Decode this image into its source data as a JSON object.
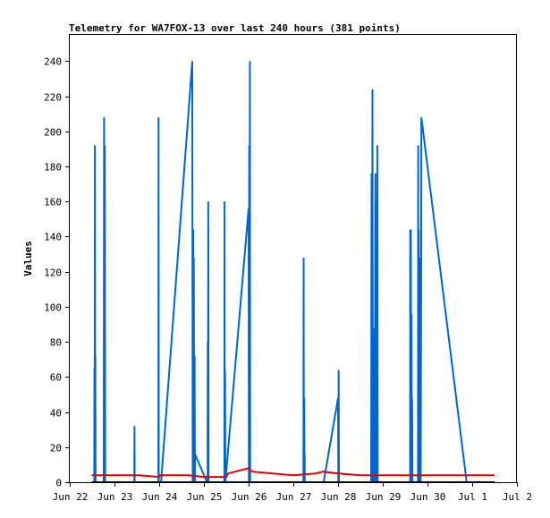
{
  "chart_data": {
    "type": "line",
    "title": "Telemetry for WA7FOX-13 over last 240 hours (381 points)",
    "xlabel": "",
    "ylabel": "Values",
    "xlim": [
      "2020-06-22T00:00",
      "2020-07-02T00:00"
    ],
    "ylim": [
      0,
      255
    ],
    "grid": false,
    "legend": "none",
    "y_ticks": [
      0,
      20,
      40,
      60,
      80,
      100,
      120,
      140,
      160,
      180,
      200,
      220,
      240
    ],
    "x_ticks": [
      {
        "t": "2020-06-22T00:00",
        "label": "Jun 22"
      },
      {
        "t": "2020-06-23T00:00",
        "label": "Jun 23"
      },
      {
        "t": "2020-06-24T00:00",
        "label": "Jun 24"
      },
      {
        "t": "2020-06-25T00:00",
        "label": "Jun 25"
      },
      {
        "t": "2020-06-26T00:00",
        "label": "Jun 26"
      },
      {
        "t": "2020-06-27T00:00",
        "label": "Jun 27"
      },
      {
        "t": "2020-06-28T00:00",
        "label": "Jun 28"
      },
      {
        "t": "2020-06-29T00:00",
        "label": "Jun 29"
      },
      {
        "t": "2020-06-30T00:00",
        "label": "Jun 30"
      },
      {
        "t": "2020-07-01T00:00",
        "label": "Jul 1"
      },
      {
        "t": "2020-07-02T00:00",
        "label": "Jul 2"
      }
    ],
    "series": [
      {
        "color": "#0066cc",
        "points": [
          [
            "2020-06-22T13:10",
            0
          ],
          [
            "2020-06-22T13:15",
            65
          ],
          [
            "2020-06-22T13:20",
            0
          ],
          [
            "2020-06-22T13:30",
            192
          ],
          [
            "2020-06-22T13:38",
            0
          ],
          [
            "2020-06-22T13:45",
            72
          ],
          [
            "2020-06-22T13:52",
            0
          ],
          [
            "2020-06-22T18:15",
            0
          ],
          [
            "2020-06-22T18:25",
            208
          ],
          [
            "2020-06-22T18:35",
            0
          ],
          [
            "2020-06-22T18:50",
            192
          ],
          [
            "2020-06-22T19:00",
            0
          ],
          [
            "2020-06-23T10:40",
            0
          ],
          [
            "2020-06-23T10:45",
            32
          ],
          [
            "2020-06-23T10:50",
            0
          ],
          [
            "2020-06-23T23:35",
            0
          ],
          [
            "2020-06-23T23:40",
            208
          ],
          [
            "2020-06-23T23:45",
            0
          ],
          [
            "2020-06-24T01:00",
            0
          ],
          [
            "2020-06-24T17:45",
            240
          ],
          [
            "2020-06-24T18:00",
            0
          ],
          [
            "2020-06-24T18:15",
            144
          ],
          [
            "2020-06-24T18:25",
            0
          ],
          [
            "2020-06-24T18:35",
            128
          ],
          [
            "2020-06-24T18:45",
            0
          ],
          [
            "2020-06-24T19:00",
            72
          ],
          [
            "2020-06-24T19:10",
            0
          ],
          [
            "2020-06-24T19:15",
            16
          ],
          [
            "2020-06-25T01:40",
            0
          ],
          [
            "2020-06-25T02:00",
            0
          ],
          [
            "2020-06-25T02:05",
            80
          ],
          [
            "2020-06-25T02:10",
            0
          ],
          [
            "2020-06-25T02:20",
            160
          ],
          [
            "2020-06-25T02:30",
            0
          ],
          [
            "2020-06-25T10:50",
            0
          ],
          [
            "2020-06-25T11:00",
            0
          ],
          [
            "2020-06-25T11:05",
            160
          ],
          [
            "2020-06-25T11:10",
            0
          ],
          [
            "2020-06-25T11:20",
            64
          ],
          [
            "2020-06-25T11:30",
            0
          ],
          [
            "2020-06-26T00:00",
            156
          ],
          [
            "2020-06-26T00:10",
            0
          ],
          [
            "2020-06-26T00:20",
            192
          ],
          [
            "2020-06-26T00:30",
            0
          ],
          [
            "2020-06-26T00:40",
            240
          ],
          [
            "2020-06-26T00:50",
            0
          ],
          [
            "2020-06-27T05:25",
            0
          ],
          [
            "2020-06-27T05:30",
            128
          ],
          [
            "2020-06-27T05:40",
            0
          ],
          [
            "2020-06-27T05:50",
            48
          ],
          [
            "2020-06-27T06:00",
            0
          ],
          [
            "2020-06-27T06:05",
            16
          ],
          [
            "2020-06-27T06:10",
            0
          ],
          [
            "2020-06-27T16:15",
            0
          ],
          [
            "2020-06-28T00:00",
            48
          ],
          [
            "2020-06-28T00:10",
            0
          ],
          [
            "2020-06-28T00:20",
            64
          ],
          [
            "2020-06-28T00:30",
            0
          ],
          [
            "2020-06-28T00:40",
            0
          ],
          [
            "2020-06-28T17:45",
            0
          ],
          [
            "2020-06-28T18:00",
            176
          ],
          [
            "2020-06-28T18:15",
            0
          ],
          [
            "2020-06-28T18:30",
            224
          ],
          [
            "2020-06-28T18:40",
            0
          ],
          [
            "2020-06-28T19:30",
            0
          ],
          [
            "2020-06-28T19:35",
            88
          ],
          [
            "2020-06-28T19:45",
            0
          ],
          [
            "2020-06-28T20:00",
            176
          ],
          [
            "2020-06-28T20:10",
            0
          ],
          [
            "2020-06-28T20:20",
            160
          ],
          [
            "2020-06-28T20:30",
            0
          ],
          [
            "2020-06-28T21:00",
            0
          ],
          [
            "2020-06-28T21:05",
            192
          ],
          [
            "2020-06-28T21:15",
            0
          ],
          [
            "2020-06-29T14:40",
            0
          ],
          [
            "2020-06-29T14:45",
            144
          ],
          [
            "2020-06-29T14:55",
            0
          ],
          [
            "2020-06-29T15:05",
            144
          ],
          [
            "2020-06-29T15:15",
            0
          ],
          [
            "2020-06-29T15:25",
            96
          ],
          [
            "2020-06-29T15:35",
            0
          ],
          [
            "2020-06-29T15:45",
            48
          ],
          [
            "2020-06-29T15:55",
            0
          ],
          [
            "2020-06-29T18:55",
            0
          ],
          [
            "2020-06-29T19:00",
            192
          ],
          [
            "2020-06-29T19:10",
            0
          ],
          [
            "2020-06-29T19:20",
            144
          ],
          [
            "2020-06-29T19:30",
            0
          ],
          [
            "2020-06-29T20:05",
            0
          ],
          [
            "2020-06-29T20:10",
            128
          ],
          [
            "2020-06-29T20:20",
            0
          ],
          [
            "2020-06-29T20:35",
            104
          ],
          [
            "2020-06-29T20:45",
            208
          ],
          [
            "2020-06-30T21:00",
            0
          ],
          [
            "2020-06-30T21:30",
            0
          ]
        ]
      },
      {
        "color": "#dd0000",
        "points": [
          [
            "2020-06-22T11:45",
            4
          ],
          [
            "2020-06-23T13:00",
            4
          ],
          [
            "2020-06-24T00:00",
            3
          ],
          [
            "2020-06-24T00:30",
            4
          ],
          [
            "2020-06-24T16:00",
            4
          ],
          [
            "2020-06-25T00:00",
            3
          ],
          [
            "2020-06-25T12:00",
            3
          ],
          [
            "2020-06-25T13:00",
            5
          ],
          [
            "2020-06-26T00:00",
            8
          ],
          [
            "2020-06-26T02:00",
            6
          ],
          [
            "2020-06-27T00:00",
            4
          ],
          [
            "2020-06-27T12:00",
            5
          ],
          [
            "2020-06-27T16:00",
            6
          ],
          [
            "2020-06-28T00:00",
            5
          ],
          [
            "2020-06-28T12:00",
            4
          ],
          [
            "2020-06-29T12:00",
            4
          ],
          [
            "2020-07-01T12:00",
            4
          ]
        ]
      },
      {
        "color": "#000000",
        "points": [
          [
            "2020-06-22T11:45",
            0
          ],
          [
            "2020-07-01T12:00",
            0
          ]
        ]
      }
    ]
  }
}
